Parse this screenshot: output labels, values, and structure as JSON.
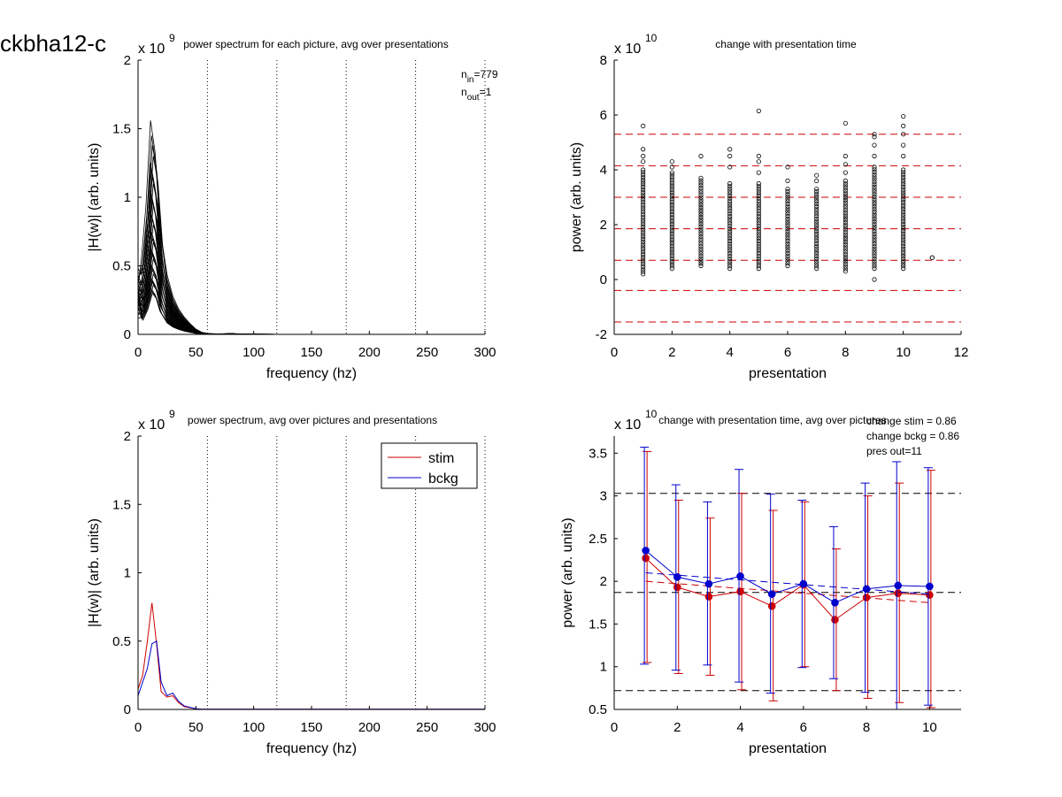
{
  "figure_label": "ckbha12-c",
  "chart_data": [
    {
      "type": "line",
      "title": "power spectrum for each picture, avg over presentations",
      "xlabel": "frequency (hz)",
      "ylabel": "|H(w)| (arb. units)",
      "y_multiplier": "x 10",
      "y_exponent": "9",
      "xlim": [
        0,
        300
      ],
      "ylim": [
        0,
        2
      ],
      "xticks": [
        "0",
        "50",
        "100",
        "150",
        "200",
        "250",
        "300"
      ],
      "yticks": [
        "0",
        "0.5",
        "1",
        "1.5",
        "2"
      ],
      "vlines_dotted": [
        60,
        120,
        180,
        240,
        300
      ],
      "notes": [
        {
          "main": "n",
          "sub": "in",
          "rest": "=779"
        },
        {
          "main": "n",
          "sub": "out",
          "rest": "=1"
        }
      ],
      "curve_freqs": [
        0,
        4,
        8,
        12,
        16,
        20,
        25,
        30,
        35,
        40,
        45,
        50,
        55,
        60,
        70,
        80,
        90,
        100,
        120,
        150,
        200,
        250,
        300
      ],
      "curve_shape": [
        0.2,
        0.35,
        0.6,
        1.0,
        0.85,
        0.5,
        0.28,
        0.18,
        0.12,
        0.08,
        0.05,
        0.025,
        0.01,
        0.004,
        0.002,
        0.004,
        0.002,
        0.001,
        0.0005,
        0.0003,
        0.0002,
        0.0001,
        0
      ],
      "curve_peaks": [
        1.56,
        1.45,
        1.38,
        1.3,
        1.25,
        1.2,
        1.15,
        1.1,
        1.05,
        1.0,
        0.97,
        0.94,
        0.9,
        0.87,
        0.84,
        0.8,
        0.77,
        0.74,
        0.7,
        0.67,
        0.64,
        0.61,
        0.58,
        0.55,
        0.52,
        0.5,
        0.47,
        0.44,
        0.42,
        0.4,
        0.38,
        0.36,
        0.34,
        0.32,
        0.3
      ],
      "color": "#000000"
    },
    {
      "type": "scatter",
      "title": "change with presentation time",
      "xlabel": "presentation",
      "ylabel": "power (arb. units)",
      "y_multiplier": "x 10",
      "y_exponent": "10",
      "xlim": [
        0,
        12
      ],
      "ylim": [
        -2,
        8
      ],
      "xticks": [
        "0",
        "2",
        "4",
        "6",
        "8",
        "10",
        "12"
      ],
      "yticks": [
        "-2",
        "0",
        "2",
        "4",
        "6",
        "8"
      ],
      "hlines_dashed": [
        5.3,
        4.15,
        3.0,
        1.85,
        0.7,
        -0.4,
        -1.55
      ],
      "hline_color": "#cc0000",
      "columns": [
        {
          "x": 1,
          "ymin": 0.2,
          "ymax": 4.0,
          "outliers": [
            4.3,
            4.5,
            4.75,
            5.6
          ]
        },
        {
          "x": 2,
          "ymin": 0.4,
          "ymax": 3.9,
          "outliers": [
            4.1,
            4.3
          ]
        },
        {
          "x": 3,
          "ymin": 0.5,
          "ymax": 3.7,
          "outliers": [
            4.5
          ]
        },
        {
          "x": 4,
          "ymin": 0.4,
          "ymax": 3.5,
          "outliers": [
            4.1,
            4.5,
            4.75
          ]
        },
        {
          "x": 5,
          "ymin": 0.4,
          "ymax": 3.5,
          "outliers": [
            3.9,
            4.3,
            4.5,
            6.15
          ]
        },
        {
          "x": 6,
          "ymin": 0.5,
          "ymax": 3.3,
          "outliers": [
            3.6,
            4.1
          ]
        },
        {
          "x": 7,
          "ymin": 0.4,
          "ymax": 3.3,
          "outliers": [
            3.6,
            3.8
          ]
        },
        {
          "x": 8,
          "ymin": 0.3,
          "ymax": 3.6,
          "outliers": [
            3.9,
            4.2,
            4.5,
            5.7
          ]
        },
        {
          "x": 9,
          "ymin": 0.4,
          "ymax": 4.1,
          "outliers": [
            4.5,
            4.9,
            5.2,
            5.3,
            0.0
          ]
        },
        {
          "x": 10,
          "ymin": 0.4,
          "ymax": 4.0,
          "outliers": [
            4.5,
            4.9,
            5.3,
            5.6,
            5.95
          ]
        },
        {
          "x": 11,
          "ymin": 0.8,
          "ymax": 0.8,
          "outliers": []
        }
      ],
      "color": "#000000"
    },
    {
      "type": "line",
      "title": "power spectrum, avg over pictures and presentations",
      "xlabel": "frequency (hz)",
      "ylabel": "|H(w)| (arb. units)",
      "y_multiplier": "x 10",
      "y_exponent": "9",
      "xlim": [
        0,
        300
      ],
      "ylim": [
        0,
        2
      ],
      "xticks": [
        "0",
        "50",
        "100",
        "150",
        "200",
        "250",
        "300"
      ],
      "yticks": [
        "0",
        "0.5",
        "1",
        "1.5",
        "2"
      ],
      "vlines_dotted": [
        60,
        120,
        180,
        240,
        300
      ],
      "legend": {
        "position": "top-right",
        "entries": [
          "stim",
          "bckg"
        ]
      },
      "series": [
        {
          "name": "stim",
          "color": "#cc0000",
          "x": [
            0,
            4,
            8,
            12,
            16,
            20,
            25,
            30,
            35,
            40,
            50,
            55,
            60,
            100,
            150,
            200,
            250,
            300
          ],
          "values": [
            0.15,
            0.25,
            0.5,
            0.78,
            0.48,
            0.13,
            0.09,
            0.1,
            0.05,
            0.02,
            0.005,
            0.002,
            0.001,
            0.001,
            0.001,
            0.001,
            0.001,
            0.001
          ]
        },
        {
          "name": "bckg",
          "color": "#0000cc",
          "x": [
            0,
            4,
            8,
            12,
            16,
            20,
            25,
            30,
            35,
            40,
            50,
            55,
            60,
            100,
            150,
            200,
            250,
            300
          ],
          "values": [
            0.1,
            0.2,
            0.3,
            0.48,
            0.5,
            0.2,
            0.1,
            0.12,
            0.06,
            0.025,
            0.005,
            0.002,
            0.001,
            0.001,
            0.001,
            0.001,
            0.001,
            0.001
          ]
        }
      ]
    },
    {
      "type": "line",
      "title": "change with presentation time, avg over pictures",
      "xlabel": "presentation",
      "ylabel": "power (arb. units)",
      "y_multiplier": "x 10",
      "y_exponent": "10",
      "xlim": [
        0,
        11
      ],
      "ylim": [
        0.5,
        3.7
      ],
      "xticks": [
        "0",
        "2",
        "4",
        "6",
        "8",
        "10"
      ],
      "yticks": [
        "0.5",
        "1",
        "1.5",
        "2",
        "2.5",
        "3",
        "3.5"
      ],
      "notes": [
        "change stim = 0.86",
        "change bckg = 0.86",
        "pres out=11"
      ],
      "hlines_dashed": [
        3.03,
        1.87,
        0.72
      ],
      "hline_color": "#000000",
      "series": [
        {
          "name": "stim",
          "color": "#cc0000",
          "x": [
            1,
            2,
            3,
            4,
            5,
            6,
            7,
            8,
            9,
            10
          ],
          "values": [
            2.27,
            1.93,
            1.82,
            1.88,
            1.71,
            1.96,
            1.55,
            1.81,
            1.86,
            1.84
          ],
          "err_low": [
            1.05,
            0.92,
            0.9,
            0.73,
            0.6,
            1.0,
            0.72,
            0.63,
            0.58,
            0.52
          ],
          "err_high": [
            3.52,
            2.95,
            2.74,
            3.03,
            2.83,
            2.93,
            2.38,
            3.0,
            3.15,
            3.3
          ],
          "trend": [
            2.0,
            1.75
          ]
        },
        {
          "name": "bckg",
          "color": "#0000cc",
          "x": [
            1,
            2,
            3,
            4,
            5,
            6,
            7,
            8,
            9,
            10
          ],
          "values": [
            2.36,
            2.05,
            1.97,
            2.06,
            1.85,
            1.97,
            1.75,
            1.91,
            1.95,
            1.94
          ],
          "err_low": [
            1.03,
            0.96,
            1.02,
            0.82,
            0.69,
            0.99,
            0.86,
            0.7,
            0.5,
            0.55
          ],
          "err_high": [
            3.57,
            3.13,
            2.93,
            3.31,
            3.02,
            2.95,
            2.64,
            3.15,
            3.4,
            3.33
          ],
          "trend": [
            2.1,
            1.85
          ]
        }
      ]
    }
  ]
}
